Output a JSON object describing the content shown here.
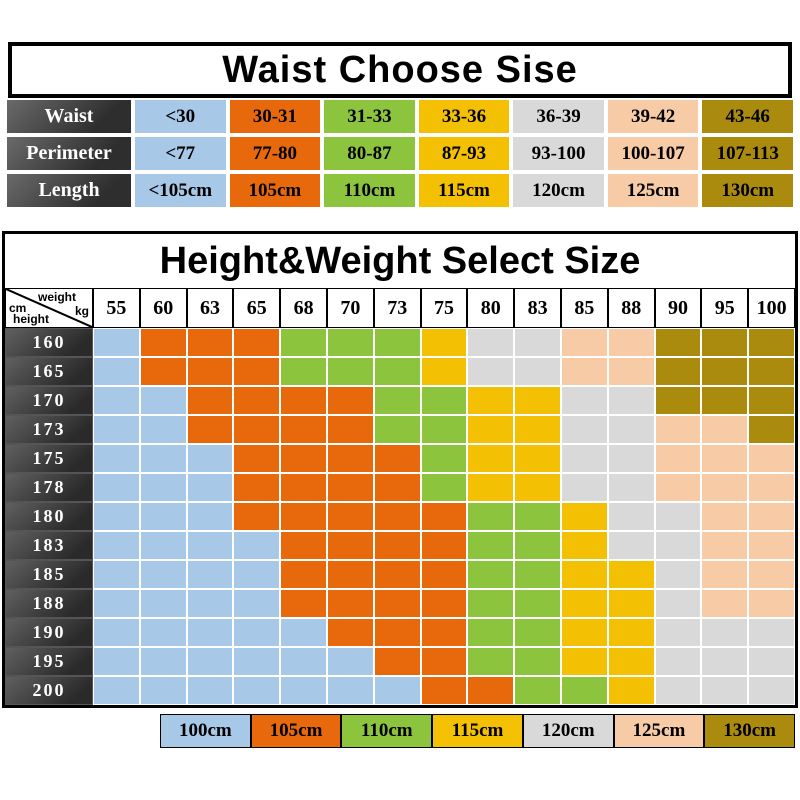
{
  "colors": {
    "palette": [
      "#a8c8e8",
      "#e8690b",
      "#8cc43d",
      "#f3c003",
      "#d9d9d9",
      "#f6cba6",
      "#ab8b0e"
    ],
    "header_dark": "#3a3a3a",
    "border": "#000000",
    "background": "#ffffff"
  },
  "chart_data": [
    {
      "type": "table",
      "title": "Waist Choose Sise",
      "row_labels": [
        "Waist",
        "Perimeter",
        "Length"
      ],
      "rows": [
        [
          "<30",
          "30-31",
          "31-33",
          "33-36",
          "36-39",
          "39-42",
          "43-46"
        ],
        [
          "<77",
          "77-80",
          "80-87",
          "87-93",
          "93-100",
          "100-107",
          "107-113"
        ],
        [
          "<105cm",
          "105cm",
          "110cm",
          "115cm",
          "120cm",
          "125cm",
          "130cm"
        ]
      ]
    },
    {
      "type": "heatmap",
      "title": "Height&Weight Select Size",
      "corner": {
        "top_label": "weight",
        "unit_right": "kg",
        "unit_left": "cm",
        "bottom_label": "height"
      },
      "weights": [
        "55",
        "60",
        "63",
        "65",
        "68",
        "70",
        "73",
        "75",
        "80",
        "83",
        "85",
        "88",
        "90",
        "95",
        "100"
      ],
      "heights": [
        "160",
        "165",
        "170",
        "173",
        "175",
        "178",
        "180",
        "183",
        "185",
        "188",
        "190",
        "195",
        "200"
      ],
      "size_labels": [
        "100cm",
        "105cm",
        "110cm",
        "115cm",
        "120cm",
        "125cm",
        "130cm"
      ],
      "matrix": [
        [
          0,
          1,
          1,
          1,
          2,
          2,
          2,
          3,
          4,
          4,
          5,
          5,
          6,
          6,
          6
        ],
        [
          0,
          1,
          1,
          1,
          2,
          2,
          2,
          3,
          4,
          4,
          5,
          5,
          6,
          6,
          6
        ],
        [
          0,
          0,
          1,
          1,
          1,
          1,
          2,
          2,
          3,
          3,
          4,
          4,
          6,
          6,
          6
        ],
        [
          0,
          0,
          1,
          1,
          1,
          1,
          2,
          2,
          3,
          3,
          4,
          4,
          5,
          5,
          6
        ],
        [
          0,
          0,
          0,
          1,
          1,
          1,
          1,
          2,
          3,
          3,
          4,
          4,
          5,
          5,
          5
        ],
        [
          0,
          0,
          0,
          1,
          1,
          1,
          1,
          2,
          3,
          3,
          4,
          4,
          5,
          5,
          5
        ],
        [
          0,
          0,
          0,
          1,
          1,
          1,
          1,
          1,
          2,
          2,
          3,
          4,
          4,
          5,
          5
        ],
        [
          0,
          0,
          0,
          0,
          1,
          1,
          1,
          1,
          2,
          2,
          3,
          4,
          4,
          5,
          5
        ],
        [
          0,
          0,
          0,
          0,
          1,
          1,
          1,
          1,
          2,
          2,
          3,
          3,
          4,
          5,
          5
        ],
        [
          0,
          0,
          0,
          0,
          1,
          1,
          1,
          1,
          2,
          2,
          3,
          3,
          4,
          5,
          5
        ],
        [
          0,
          0,
          0,
          0,
          0,
          1,
          1,
          1,
          2,
          2,
          3,
          3,
          4,
          4,
          4
        ],
        [
          0,
          0,
          0,
          0,
          0,
          0,
          1,
          1,
          2,
          2,
          3,
          3,
          4,
          4,
          4
        ],
        [
          0,
          0,
          0,
          0,
          0,
          0,
          0,
          1,
          1,
          2,
          2,
          3,
          4,
          4,
          4
        ]
      ]
    }
  ]
}
